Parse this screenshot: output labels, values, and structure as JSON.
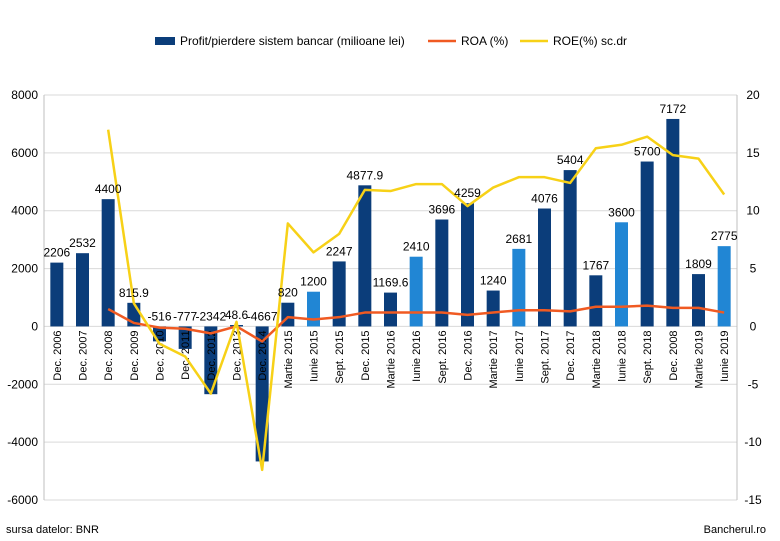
{
  "source_note": "sursa datelor: BNR",
  "brand": "Bancherul.ro",
  "colors": {
    "bar_dark": "#0b3d7a",
    "bar_light": "#2186d4",
    "roa": "#f05a22",
    "roe": "#f7d117",
    "grid": "#d9d9d9"
  },
  "chart_data": {
    "type": "bar",
    "categories": [
      "Dec. 2006",
      "Dec. 2007",
      "Dec. 2008",
      "Dec. 2009",
      "Dec. 2010",
      "Dec. 2011",
      "Dec. 2012",
      "Dec. 2013",
      "Dec. 2014",
      "Martie 2015",
      "Iunie 2015",
      "Sept. 2015",
      "Dec. 2015",
      "Martie 2016",
      "Iunie 2016",
      "Sept. 2016",
      "Dec. 2016",
      "Martie 2017",
      "Iunie 2017",
      "Sept. 2017",
      "Dec. 2017",
      "Martie 2018",
      "Iunie 2018",
      "Sept. 2018",
      "Dec. 2008",
      "Martie 2019",
      "Iunie 2019"
    ],
    "series": [
      {
        "name": "Profit/pierdere sistem bancar (milioane lei)",
        "type": "bar",
        "axis": "left",
        "values": [
          2206,
          2532,
          4400,
          815.9,
          -516,
          -777,
          -2342,
          48.6,
          -4667,
          820,
          1200,
          2247,
          4877.9,
          1169.6,
          2410,
          3696,
          4259,
          1240,
          2681,
          4076,
          5404,
          1767,
          3600,
          5700,
          7172,
          1809,
          2775
        ],
        "labels": [
          "2206",
          "2532",
          "4400",
          "815.9",
          "-516",
          "-777",
          "-2342",
          "48.6",
          "-4667",
          "820",
          "1200",
          "2247",
          "4877.9",
          "1169.6",
          "2410",
          "3696",
          "4259",
          "1240",
          "2681",
          "4076",
          "5404",
          "1767",
          "3600",
          "5700",
          "7172",
          "1809",
          "2775"
        ],
        "highlight": [
          false,
          false,
          false,
          false,
          false,
          false,
          false,
          false,
          false,
          false,
          true,
          false,
          false,
          false,
          true,
          false,
          false,
          false,
          true,
          false,
          false,
          false,
          true,
          false,
          false,
          false,
          true
        ]
      },
      {
        "name": "ROA (%)",
        "type": "line",
        "axis": "right",
        "values": [
          null,
          null,
          1.5,
          0.3,
          -0.1,
          -0.2,
          -0.6,
          0.01,
          -1.3,
          0.8,
          0.6,
          0.8,
          1.2,
          1.2,
          1.2,
          1.2,
          1.0,
          1.2,
          1.4,
          1.4,
          1.3,
          1.7,
          1.7,
          1.8,
          1.6,
          1.6,
          1.2
        ]
      },
      {
        "name": "ROE(%) sc.dr",
        "type": "line",
        "axis": "right",
        "values": [
          null,
          null,
          17.0,
          2.0,
          -1.5,
          -2.6,
          -5.8,
          0.4,
          -12.4,
          8.9,
          6.4,
          8.0,
          11.8,
          11.7,
          12.3,
          12.3,
          10.4,
          12.0,
          12.9,
          12.9,
          12.4,
          15.4,
          15.7,
          16.4,
          14.8,
          14.5,
          11.4
        ]
      }
    ],
    "y_left": {
      "min": -6000,
      "max": 8000,
      "ticks": [
        -6000,
        -4000,
        -2000,
        0,
        2000,
        4000,
        6000,
        8000
      ]
    },
    "y_right": {
      "min": -15,
      "max": 20,
      "ticks": [
        -15,
        -10,
        -5,
        0,
        5,
        10,
        15,
        20
      ]
    },
    "grid": true,
    "legend_position": "top"
  }
}
